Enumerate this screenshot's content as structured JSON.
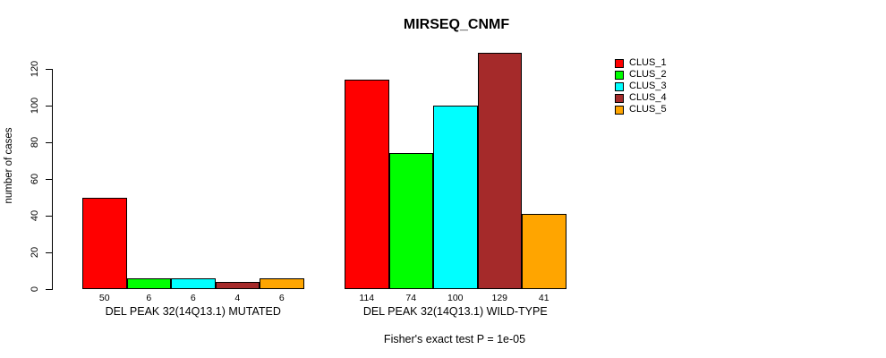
{
  "chart_data": {
    "type": "bar",
    "title": "MIRSEQ_CNMF",
    "ylabel": "number of cases",
    "xlabel": "",
    "ylim": [
      0,
      130
    ],
    "yticks": [
      0,
      20,
      40,
      60,
      80,
      100,
      120
    ],
    "grid": false,
    "legend_position": "top-right",
    "series": [
      "CLUS_1",
      "CLUS_2",
      "CLUS_3",
      "CLUS_4",
      "CLUS_5"
    ],
    "series_colors": [
      "#FF0000",
      "#00FF00",
      "#00FFFF",
      "#A52A2A",
      "#FFA500"
    ],
    "groups": [
      {
        "label": "DEL PEAK 32(14Q13.1) MUTATED",
        "values": [
          50,
          6,
          6,
          4,
          6
        ]
      },
      {
        "label": "DEL PEAK 32(14Q13.1) WILD-TYPE",
        "values": [
          114,
          74,
          100,
          129,
          41
        ]
      }
    ],
    "bar_value_labels": true,
    "annotation": "Fisher's exact test P = 1e-05"
  }
}
